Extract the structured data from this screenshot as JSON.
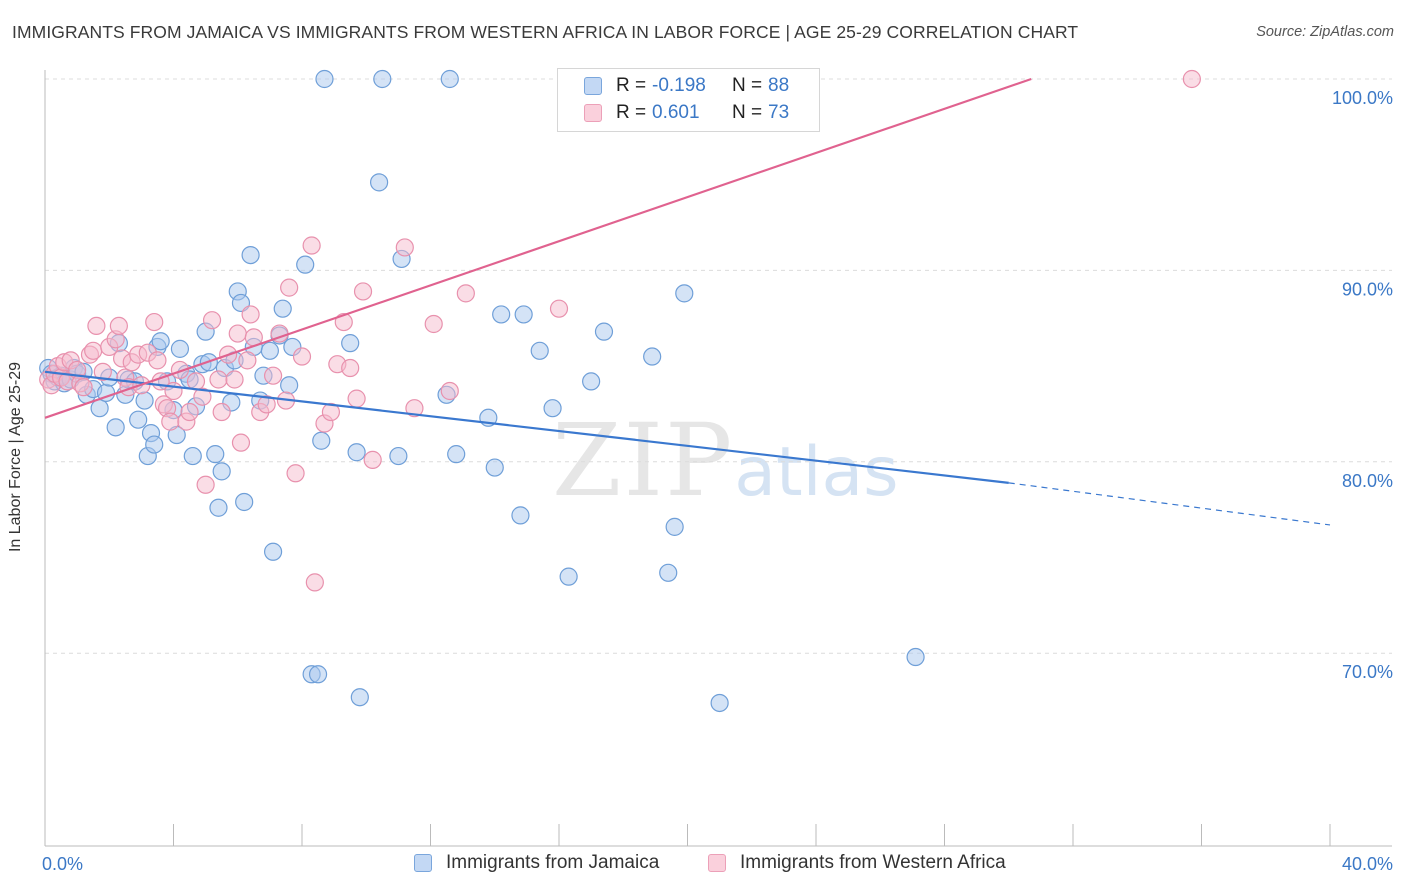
{
  "title": "IMMIGRANTS FROM JAMAICA VS IMMIGRANTS FROM WESTERN AFRICA IN LABOR FORCE | AGE 25-29 CORRELATION CHART",
  "source": "Source: ZipAtlas.com",
  "watermark": {
    "zip": "ZIP",
    "atlas": "atlas"
  },
  "legend": {
    "rows": [
      {
        "r_label": "R =",
        "r_value": "-0.198",
        "n_label": "N =",
        "n_value": "88"
      },
      {
        "r_label": "R =",
        "r_value": "0.601",
        "n_label": "N =",
        "n_value": "73"
      }
    ]
  },
  "bottom_legend": [
    "Immigrants from Jamaica",
    "Immigrants from Western Africa"
  ],
  "colors": {
    "jamaica_fill": "#a9c8ee",
    "jamaica_stroke": "#6f9fd8",
    "jamaica_line": "#3a78cf",
    "wafrica_fill": "#f6bccd",
    "wafrica_stroke": "#e891ad",
    "wafrica_line": "#e0628f",
    "tick_text": "#3b78c6"
  },
  "chart_data": {
    "type": "scatter",
    "title": "IMMIGRANTS FROM JAMAICA VS IMMIGRANTS FROM WESTERN AFRICA IN LABOR FORCE | AGE 25-29 CORRELATION CHART",
    "xlabel": "",
    "ylabel": "In Labor Force | Age 25-29",
    "xlim": [
      0,
      40
    ],
    "ylim": [
      60,
      101
    ],
    "x_tick_labels": [
      "0.0%",
      "40.0%"
    ],
    "y_ticks": [
      70,
      80,
      90,
      100
    ],
    "y_tick_labels": [
      "70.0%",
      "80.0%",
      "90.0%",
      "100.0%"
    ],
    "grid": true,
    "series": [
      {
        "name": "Immigrants from Jamaica",
        "r": -0.198,
        "n": 88,
        "trend": {
          "x": [
            0,
            30
          ],
          "y": [
            84.7,
            78.9
          ],
          "dashed_to": [
            40,
            76.7
          ]
        },
        "points": [
          [
            0.1,
            84.9
          ],
          [
            0.2,
            84.6
          ],
          [
            0.3,
            84.2
          ],
          [
            0.4,
            84.4
          ],
          [
            0.5,
            84.5
          ],
          [
            0.6,
            84.1
          ],
          [
            0.8,
            84.3
          ],
          [
            0.9,
            84.9
          ],
          [
            1.0,
            84.6
          ],
          [
            1.2,
            84.7
          ],
          [
            1.3,
            83.5
          ],
          [
            1.5,
            83.8
          ],
          [
            1.7,
            82.8
          ],
          [
            1.9,
            83.6
          ],
          [
            2.0,
            84.4
          ],
          [
            2.2,
            81.8
          ],
          [
            2.3,
            86.2
          ],
          [
            2.5,
            83.5
          ],
          [
            2.6,
            84.3
          ],
          [
            2.8,
            84.2
          ],
          [
            2.9,
            82.2
          ],
          [
            3.1,
            83.2
          ],
          [
            3.2,
            80.3
          ],
          [
            3.3,
            81.5
          ],
          [
            3.4,
            80.9
          ],
          [
            3.5,
            86.0
          ],
          [
            3.6,
            86.3
          ],
          [
            3.8,
            84.2
          ],
          [
            4.0,
            82.7
          ],
          [
            4.1,
            81.4
          ],
          [
            4.2,
            85.9
          ],
          [
            4.4,
            84.6
          ],
          [
            4.5,
            84.3
          ],
          [
            4.6,
            80.3
          ],
          [
            4.7,
            82.9
          ],
          [
            4.9,
            85.1
          ],
          [
            5.0,
            86.8
          ],
          [
            5.1,
            85.2
          ],
          [
            5.3,
            80.4
          ],
          [
            5.4,
            77.6
          ],
          [
            5.5,
            79.5
          ],
          [
            5.6,
            84.9
          ],
          [
            5.8,
            83.1
          ],
          [
            5.9,
            85.3
          ],
          [
            6.0,
            88.9
          ],
          [
            6.1,
            88.3
          ],
          [
            6.2,
            77.9
          ],
          [
            6.4,
            90.8
          ],
          [
            6.5,
            86.0
          ],
          [
            6.7,
            83.2
          ],
          [
            6.8,
            84.5
          ],
          [
            7.0,
            85.8
          ],
          [
            7.1,
            75.3
          ],
          [
            7.3,
            86.6
          ],
          [
            7.4,
            88.0
          ],
          [
            7.6,
            84.0
          ],
          [
            7.7,
            86.0
          ],
          [
            8.1,
            90.3
          ],
          [
            8.3,
            68.9
          ],
          [
            8.5,
            68.9
          ],
          [
            8.6,
            81.1
          ],
          [
            8.7,
            100.0
          ],
          [
            9.5,
            86.2
          ],
          [
            9.7,
            80.5
          ],
          [
            9.8,
            67.7
          ],
          [
            10.4,
            94.6
          ],
          [
            10.5,
            100.0
          ],
          [
            11.0,
            80.3
          ],
          [
            11.1,
            90.6
          ],
          [
            12.5,
            83.5
          ],
          [
            12.6,
            100.0
          ],
          [
            12.8,
            80.4
          ],
          [
            13.8,
            82.3
          ],
          [
            14.0,
            79.7
          ],
          [
            14.2,
            87.7
          ],
          [
            14.8,
            77.2
          ],
          [
            14.9,
            87.7
          ],
          [
            15.4,
            85.8
          ],
          [
            15.8,
            82.8
          ],
          [
            16.3,
            74.0
          ],
          [
            17.0,
            84.2
          ],
          [
            17.4,
            86.8
          ],
          [
            18.9,
            85.5
          ],
          [
            19.4,
            74.2
          ],
          [
            19.6,
            76.6
          ],
          [
            19.9,
            88.8
          ],
          [
            21.0,
            67.4
          ],
          [
            27.1,
            69.8
          ]
        ]
      },
      {
        "name": "Immigrants from Western Africa",
        "r": 0.601,
        "n": 73,
        "trend": {
          "x": [
            0,
            30.7
          ],
          "y": [
            82.3,
            100.0
          ]
        },
        "points": [
          [
            0.1,
            84.3
          ],
          [
            0.2,
            84.0
          ],
          [
            0.3,
            84.6
          ],
          [
            0.4,
            85.0
          ],
          [
            0.5,
            84.4
          ],
          [
            0.6,
            85.2
          ],
          [
            0.7,
            84.2
          ],
          [
            0.8,
            85.3
          ],
          [
            1.0,
            84.8
          ],
          [
            1.1,
            84.1
          ],
          [
            1.2,
            83.9
          ],
          [
            1.4,
            85.6
          ],
          [
            1.5,
            85.8
          ],
          [
            1.6,
            87.1
          ],
          [
            1.8,
            84.7
          ],
          [
            2.0,
            86.0
          ],
          [
            2.2,
            86.4
          ],
          [
            2.3,
            87.1
          ],
          [
            2.4,
            85.4
          ],
          [
            2.5,
            84.4
          ],
          [
            2.6,
            83.9
          ],
          [
            2.7,
            85.2
          ],
          [
            2.9,
            85.6
          ],
          [
            3.0,
            84.0
          ],
          [
            3.2,
            85.7
          ],
          [
            3.4,
            87.3
          ],
          [
            3.5,
            85.3
          ],
          [
            3.6,
            84.2
          ],
          [
            3.7,
            83.0
          ],
          [
            3.8,
            82.8
          ],
          [
            3.9,
            82.1
          ],
          [
            4.0,
            83.7
          ],
          [
            4.2,
            84.8
          ],
          [
            4.4,
            82.1
          ],
          [
            4.5,
            82.6
          ],
          [
            4.7,
            84.2
          ],
          [
            4.9,
            83.4
          ],
          [
            5.0,
            78.8
          ],
          [
            5.2,
            87.4
          ],
          [
            5.4,
            84.3
          ],
          [
            5.5,
            82.6
          ],
          [
            5.7,
            85.6
          ],
          [
            5.9,
            84.3
          ],
          [
            6.0,
            86.7
          ],
          [
            6.1,
            81.0
          ],
          [
            6.3,
            85.3
          ],
          [
            6.4,
            87.7
          ],
          [
            6.5,
            86.5
          ],
          [
            6.7,
            82.6
          ],
          [
            6.9,
            83.0
          ],
          [
            7.1,
            84.5
          ],
          [
            7.3,
            86.7
          ],
          [
            7.5,
            83.2
          ],
          [
            7.6,
            89.1
          ],
          [
            7.8,
            79.4
          ],
          [
            8.0,
            85.5
          ],
          [
            8.3,
            91.3
          ],
          [
            8.4,
            73.7
          ],
          [
            8.7,
            82.0
          ],
          [
            8.9,
            82.6
          ],
          [
            9.1,
            85.1
          ],
          [
            9.3,
            87.3
          ],
          [
            9.5,
            84.9
          ],
          [
            9.7,
            83.3
          ],
          [
            9.9,
            88.9
          ],
          [
            10.2,
            80.1
          ],
          [
            11.2,
            91.2
          ],
          [
            11.5,
            82.8
          ],
          [
            12.1,
            87.2
          ],
          [
            12.6,
            83.7
          ],
          [
            13.1,
            88.8
          ],
          [
            16.0,
            88.0
          ],
          [
            35.7,
            100.0
          ]
        ]
      }
    ]
  }
}
